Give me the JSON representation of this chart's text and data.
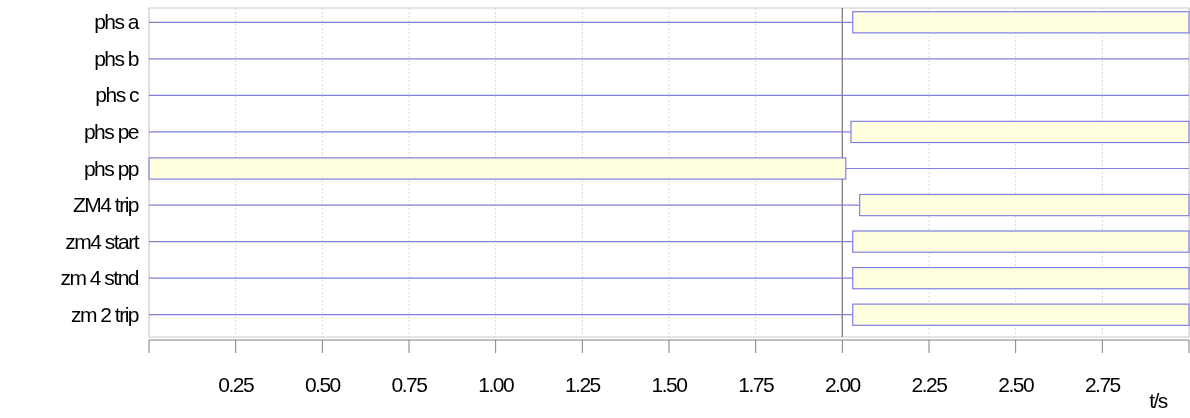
{
  "chart_data": {
    "type": "bar",
    "orientation": "horizontal",
    "xlabel": "t/s",
    "categories": [
      "phs  a",
      "phs b",
      "phs c",
      "phs pe",
      "phs pp",
      "ZM4 trip",
      "zm4 start",
      "zm 4 stnd",
      "zm 2 trip"
    ],
    "base": [
      2.03,
      null,
      null,
      2.025,
      0,
      2.05,
      2.03,
      2.03,
      2.03
    ],
    "values": [
      0.97,
      null,
      null,
      0.975,
      2.01,
      0.95,
      0.97,
      0.97,
      0.97
    ],
    "color": "#ffffe0",
    "xlim": [
      0,
      3
    ],
    "xticks": [
      {
        "value": 0,
        "label": null
      },
      0.25,
      {
        "value": 0.5,
        "label": "0.50"
      },
      0.75,
      {
        "value": 1,
        "label": "1.00"
      },
      1.25,
      {
        "value": 1.5,
        "label": "1.50"
      },
      1.75,
      {
        "value": 2,
        "label": "2.00"
      },
      2.25,
      {
        "value": 2.5,
        "label": "2.50"
      },
      2.75,
      {
        "value": 3,
        "label": null
      }
    ],
    "ref_lines": [
      {
        "axis": "x",
        "value": 2,
        "color": "#808080"
      }
    ],
    "grid": true
  }
}
